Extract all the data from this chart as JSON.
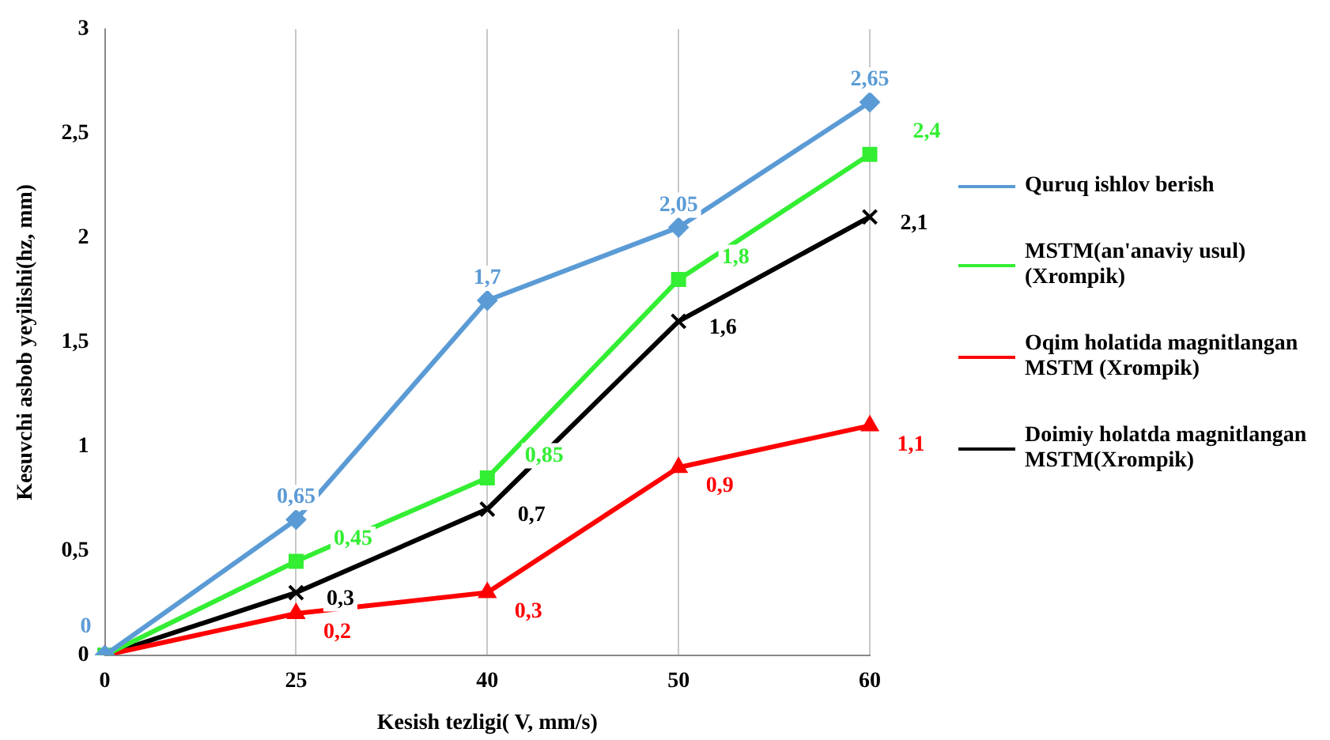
{
  "chart_data": {
    "type": "line",
    "xlabel": "Kesish tezligi( V, mm/s)",
    "ylabel": "Kesuvchi asbob yeyilishi(hz, mm)",
    "categories": [
      "0",
      "25",
      "40",
      "50",
      "60"
    ],
    "ylim": [
      0,
      3
    ],
    "yticks": [
      0,
      {
        "value": 0.5,
        "label": "0,5"
      },
      1,
      {
        "value": 1.5,
        "label": "1,5"
      },
      2,
      {
        "value": 2.5,
        "label": "2,5"
      },
      3
    ],
    "grid": "x",
    "legend": "right",
    "line_style": "solid",
    "series": [
      {
        "name": "Quruq ishlov berish",
        "color": "#5b9bd5",
        "marker": "diamond",
        "values": [
          0,
          0.65,
          1.7,
          2.05,
          2.65
        ],
        "value_labels": [
          "0",
          "0,65",
          "1,7",
          "2,05",
          "2,65"
        ]
      },
      {
        "name": "MSTM(an'anaviy usul) (Xrompik)",
        "color": "#33ee33",
        "marker": "square",
        "values": [
          0,
          0.45,
          0.85,
          1.8,
          2.4
        ],
        "value_labels": [
          null,
          "0,45",
          "0,85",
          "1,8",
          "2,4"
        ]
      },
      {
        "name": "Oqim holatida magnitlangan MSTM (Xrompik)",
        "color": "#ff0000",
        "marker": "triangle",
        "values": [
          0,
          0.2,
          0.3,
          0.9,
          1.1
        ],
        "value_labels": [
          null,
          "0,2",
          "0,3",
          "0,9",
          "1,1"
        ]
      },
      {
        "name": "Doimiy holatda magnitlangan MSTM(Xrompik)",
        "color": "#000000",
        "marker": "cross",
        "values": [
          0,
          0.3,
          0.7,
          1.6,
          2.1
        ],
        "value_labels": [
          null,
          "0,3",
          "0,7",
          "1,6",
          "2,1"
        ]
      }
    ]
  }
}
